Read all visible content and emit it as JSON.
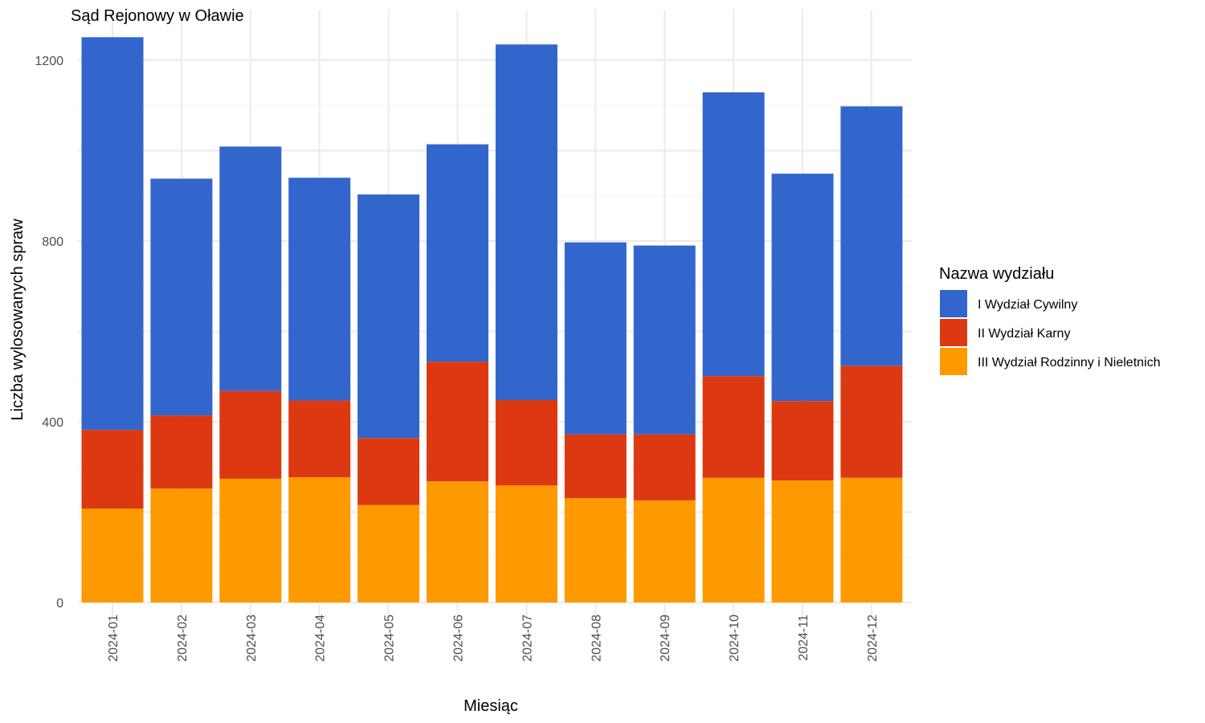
{
  "chart_data": {
    "type": "bar",
    "stacked": true,
    "title": "Sąd Rejonowy w Oławie",
    "xlabel": "Miesiąc",
    "ylabel": "Liczba wylosowanych spraw",
    "ylim": [
      0,
      1270
    ],
    "yticks": [
      0,
      400,
      800,
      1200
    ],
    "grid": true,
    "legend_position": "right",
    "legend_title": "Nazwa wydziału",
    "categories": [
      "2024-01",
      "2024-02",
      "2024-03",
      "2024-04",
      "2024-05",
      "2024-06",
      "2024-07",
      "2024-08",
      "2024-09",
      "2024-10",
      "2024-11",
      "2024-12"
    ],
    "series": [
      {
        "name": "III Wydział Rodzinny i Nieletnich",
        "color": "#FF9900",
        "values": [
          208,
          252,
          274,
          277,
          216,
          268,
          259,
          231,
          226,
          276,
          270,
          276
        ]
      },
      {
        "name": "II Wydział Karny",
        "color": "#DC3912",
        "values": [
          174,
          162,
          194,
          170,
          148,
          265,
          189,
          141,
          146,
          225,
          176,
          248
        ]
      },
      {
        "name": "I Wydział Cywilny",
        "color": "#3366CC",
        "values": [
          869,
          524,
          541,
          493,
          539,
          481,
          787,
          425,
          418,
          628,
          503,
          574
        ]
      }
    ]
  }
}
